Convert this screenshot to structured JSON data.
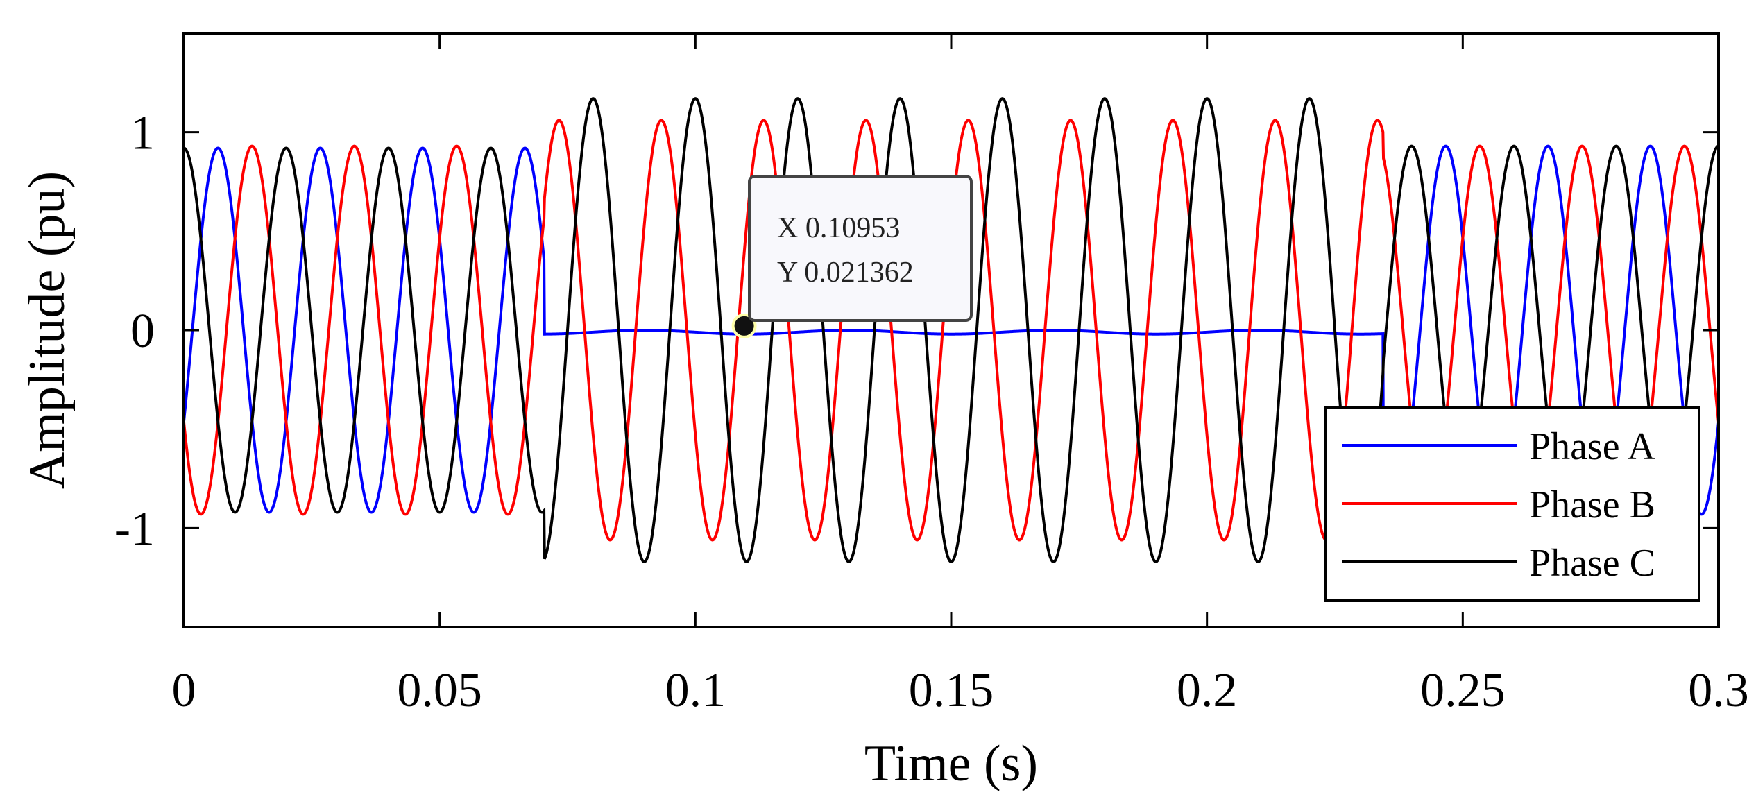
{
  "chart_data": {
    "type": "line",
    "title": "",
    "xlabel": "Time (s)",
    "ylabel": "Amplitude (pu)",
    "xlim": [
      0,
      0.3
    ],
    "ylim": [
      -1.5,
      1.5
    ],
    "xticks": [
      0,
      0.05,
      0.1,
      0.15,
      0.2,
      0.25,
      0.3
    ],
    "xtick_labels": [
      "0",
      "0.05",
      "0.1",
      "0.15",
      "0.2",
      "0.25",
      "0.3"
    ],
    "yticks": [
      -1,
      0,
      1
    ],
    "ytick_labels": [
      "-1",
      "0",
      "1"
    ],
    "grid": false,
    "legend_position": "bottom-right",
    "frequency_hz": 50,
    "fault_interval_s": [
      0.0705,
      0.2345
    ],
    "series": [
      {
        "name": "Phase A",
        "color": "#0000ff",
        "pre_fault_amplitude": 0.92,
        "fault_amplitude": 0.0,
        "post_fault_amplitude": 0.93,
        "phase_deg": -30
      },
      {
        "name": "Phase B",
        "color": "#ff0000",
        "pre_fault_amplitude": 0.93,
        "fault_amplitude": 1.06,
        "post_fault_amplitude": 0.93,
        "phase_deg": -150
      },
      {
        "name": "Phase C",
        "color": "#000000",
        "pre_fault_amplitude": 0.92,
        "fault_amplitude": 1.17,
        "post_fault_amplitude": 0.93,
        "phase_deg": 90
      }
    ],
    "datatip": {
      "x": 0.10953,
      "y": 0.021362,
      "x_label": "X 0.10953",
      "y_label": "Y 0.021362"
    }
  }
}
